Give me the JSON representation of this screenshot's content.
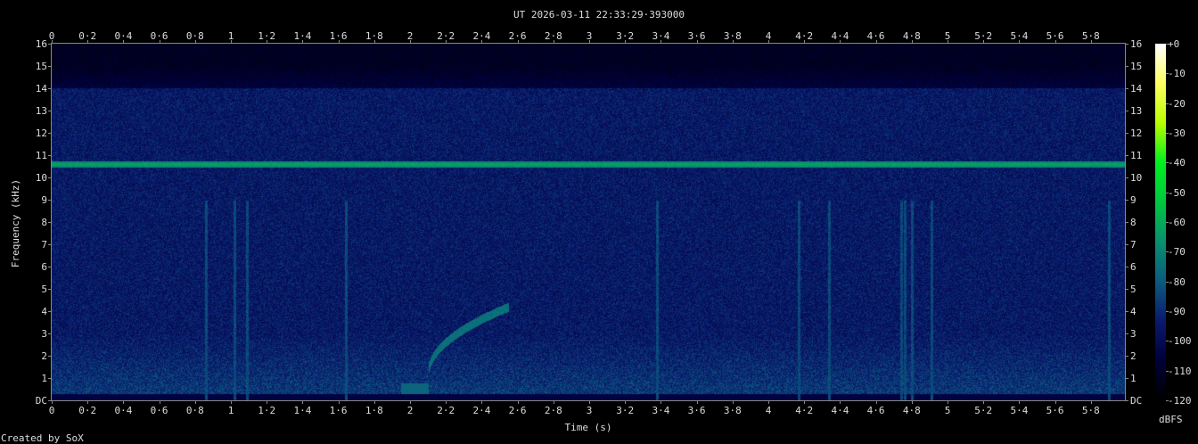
{
  "chart_data": {
    "type": "heatmap",
    "title": "UT 2026-03-11 22:33:29·393000",
    "xlabel": "Time (s)",
    "ylabel": "Frequency (kHz)",
    "xlim": [
      0,
      6.0
    ],
    "ylim": [
      0,
      16
    ],
    "x_ticks": [
      "0",
      "0·2",
      "0·4",
      "0·6",
      "0·8",
      "1",
      "1·2",
      "1·4",
      "1·6",
      "1·8",
      "2",
      "2·2",
      "2·4",
      "2·6",
      "2·8",
      "3",
      "3·2",
      "3·4",
      "3·6",
      "3·8",
      "4",
      "4·2",
      "4·4",
      "4·6",
      "4·8",
      "5",
      "5·2",
      "5·4",
      "5·6",
      "5·8"
    ],
    "y_ticks": [
      "DC",
      "1",
      "2",
      "3",
      "4",
      "5",
      "6",
      "7",
      "8",
      "9",
      "10",
      "11",
      "12",
      "13",
      "14",
      "15",
      "16"
    ],
    "colorbar": {
      "label": "dBFS",
      "range": [
        -120,
        0
      ],
      "ticks": [
        "+0",
        "-10",
        "-20",
        "-30",
        "-40",
        "-50",
        "-60",
        "-70",
        "-80",
        "-90",
        "-100",
        "-110",
        "-120"
      ],
      "colors": [
        "#000000",
        "#00003a",
        "#0a1a6e",
        "#0c5c80",
        "#0a9070",
        "#00c840",
        "#00f020",
        "#b8ff00",
        "#ffff60",
        "#ffffff"
      ]
    },
    "features": {
      "noise_floor_dbfs": -95,
      "high_band_cutoff_khz": 14,
      "tone": {
        "freq_khz": 10.6,
        "level_dbfs": -62
      },
      "chirp": {
        "start_s": 2.1,
        "end_s": 2.55,
        "start_khz": 1.2,
        "end_khz": 4.2,
        "level_dbfs": -75
      },
      "transients_s": [
        0.86,
        1.02,
        1.09,
        1.64,
        3.38,
        4.17,
        4.34,
        4.74,
        4.76,
        4.8,
        4.91,
        5.9
      ]
    },
    "footer": "Created by SoX"
  }
}
